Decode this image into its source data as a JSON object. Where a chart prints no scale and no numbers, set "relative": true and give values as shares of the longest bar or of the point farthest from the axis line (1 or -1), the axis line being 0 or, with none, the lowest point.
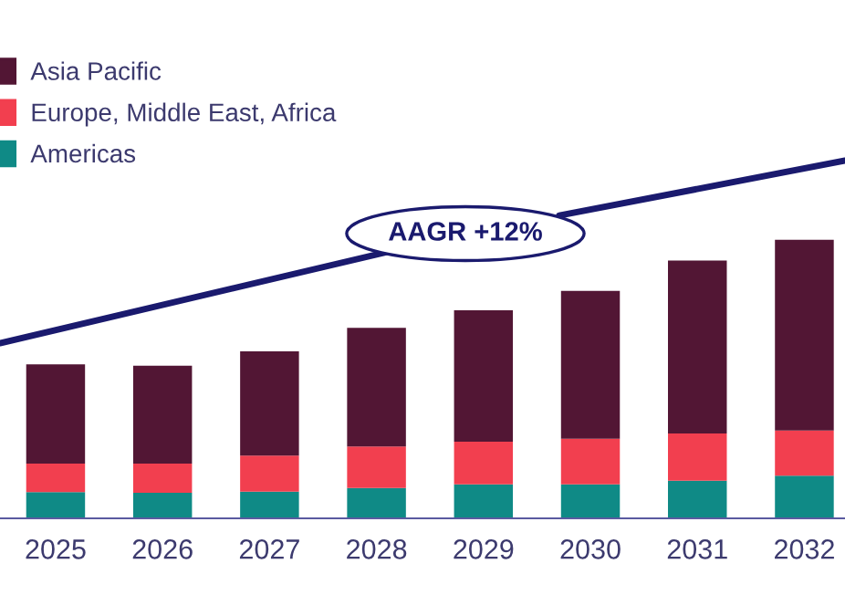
{
  "chart_data": {
    "type": "bar",
    "stacked": true,
    "relative": true,
    "categories": [
      "2025",
      "2026",
      "2027",
      "2028",
      "2029",
      "2030",
      "2031",
      "2032"
    ],
    "series": [
      {
        "name": "Americas",
        "color": "#0f8a86",
        "values": [
          0.094,
          0.092,
          0.096,
          0.109,
          0.122,
          0.122,
          0.135,
          0.153
        ]
      },
      {
        "name": "Europe, Middle East, Africa",
        "color": "#f23f4f",
        "values": [
          0.103,
          0.105,
          0.129,
          0.149,
          0.153,
          0.164,
          0.17,
          0.162
        ]
      },
      {
        "name": "Asia Pacific",
        "color": "#521634",
        "values": [
          0.356,
          0.351,
          0.375,
          0.426,
          0.472,
          0.531,
          0.621,
          0.685
        ]
      }
    ],
    "annotations": [
      "AAGR +12%"
    ],
    "legend": "top left",
    "grid": false
  }
}
